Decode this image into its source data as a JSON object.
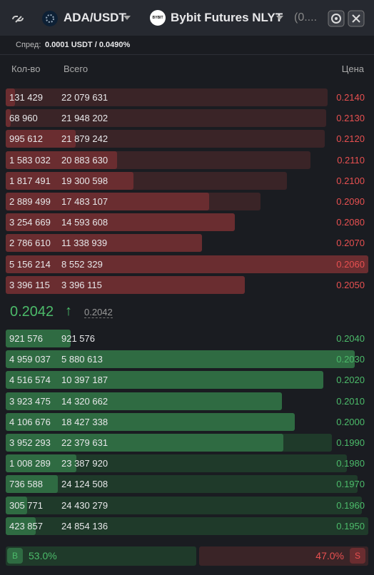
{
  "header": {
    "pair": "ADA/USDT",
    "exchange_logo": "BYBIT",
    "exchange": "Bybit Futures NLYT",
    "extra": "(0...."
  },
  "spread": {
    "label": "Спред:",
    "value": "0.0001 USDT / 0.0490%"
  },
  "columns": {
    "qty": "Кол-во",
    "total": "Всего",
    "price": "Цена"
  },
  "asks": [
    {
      "qty": {
        "value": 131429,
        "label": "131 429"
      },
      "total": {
        "value": 22079631,
        "label": "22 079 631"
      },
      "price": "0.2140"
    },
    {
      "qty": {
        "value": 68960,
        "label": "68 960"
      },
      "total": {
        "value": 21948202,
        "label": "21 948 202"
      },
      "price": "0.2130"
    },
    {
      "qty": {
        "value": 995612,
        "label": "995 612"
      },
      "total": {
        "value": 21879242,
        "label": "21 879 242"
      },
      "price": "0.2120"
    },
    {
      "qty": {
        "value": 1583032,
        "label": "1 583 032"
      },
      "total": {
        "value": 20883630,
        "label": "20 883 630"
      },
      "price": "0.2110"
    },
    {
      "qty": {
        "value": 1817491,
        "label": "1 817 491"
      },
      "total": {
        "value": 19300598,
        "label": "19 300 598"
      },
      "price": "0.2100"
    },
    {
      "qty": {
        "value": 2889499,
        "label": "2 889 499"
      },
      "total": {
        "value": 17483107,
        "label": "17 483 107"
      },
      "price": "0.2090"
    },
    {
      "qty": {
        "value": 3254669,
        "label": "3 254 669"
      },
      "total": {
        "value": 14593608,
        "label": "14 593 608"
      },
      "price": "0.2080"
    },
    {
      "qty": {
        "value": 2786610,
        "label": "2 786 610"
      },
      "total": {
        "value": 11338939,
        "label": "11 338 939"
      },
      "price": "0.2070"
    },
    {
      "qty": {
        "value": 5156214,
        "label": "5 156 214"
      },
      "total": {
        "value": 8552329,
        "label": "8 552 329"
      },
      "price": "0.2060"
    },
    {
      "qty": {
        "value": 3396115,
        "label": "3 396 115"
      },
      "total": {
        "value": 3396115,
        "label": "3 396 115"
      },
      "price": "0.2050"
    }
  ],
  "last_price": {
    "value": "0.2042",
    "arrow": "↑",
    "mark": "0.2042"
  },
  "bids": [
    {
      "qty": {
        "value": 921576,
        "label": "921 576"
      },
      "total": {
        "value": 921576,
        "label": "921 576"
      },
      "price": "0.2040"
    },
    {
      "qty": {
        "value": 4959037,
        "label": "4 959 037"
      },
      "total": {
        "value": 5880613,
        "label": "5 880 613"
      },
      "price": "0.2030"
    },
    {
      "qty": {
        "value": 4516574,
        "label": "4 516 574"
      },
      "total": {
        "value": 10397187,
        "label": "10 397 187"
      },
      "price": "0.2020"
    },
    {
      "qty": {
        "value": 3923475,
        "label": "3 923 475"
      },
      "total": {
        "value": 14320662,
        "label": "14 320 662"
      },
      "price": "0.2010"
    },
    {
      "qty": {
        "value": 4106676,
        "label": "4 106 676"
      },
      "total": {
        "value": 18427338,
        "label": "18 427 338"
      },
      "price": "0.2000"
    },
    {
      "qty": {
        "value": 3952293,
        "label": "3 952 293"
      },
      "total": {
        "value": 22379631,
        "label": "22 379 631"
      },
      "price": "0.1990"
    },
    {
      "qty": {
        "value": 1008289,
        "label": "1 008 289"
      },
      "total": {
        "value": 23387920,
        "label": "23 387 920"
      },
      "price": "0.1980"
    },
    {
      "qty": {
        "value": 736588,
        "label": "736 588"
      },
      "total": {
        "value": 24124508,
        "label": "24 124 508"
      },
      "price": "0.1970"
    },
    {
      "qty": {
        "value": 305771,
        "label": "305 771"
      },
      "total": {
        "value": 24430279,
        "label": "24 430 279"
      },
      "price": "0.1960"
    },
    {
      "qty": {
        "value": 423857,
        "label": "423 857"
      },
      "total": {
        "value": 24854136,
        "label": "24 854 136"
      },
      "price": "0.1950"
    }
  ],
  "ratio": {
    "buy_button": "B",
    "buy": {
      "value": 53,
      "label": "53.0%"
    },
    "sell": {
      "value": 47,
      "label": "47.0%"
    },
    "sell_button": "S"
  }
}
